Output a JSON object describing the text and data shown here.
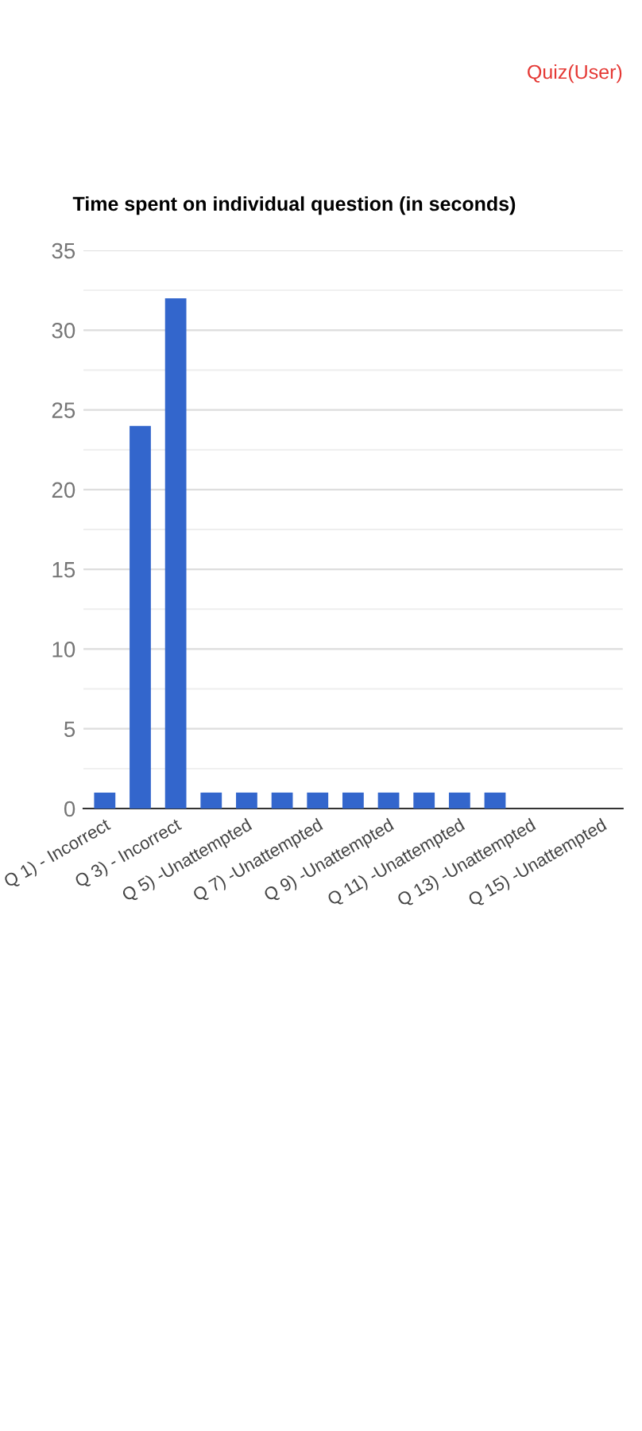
{
  "chart_data": {
    "type": "bar",
    "title": "Time spent on individual question (in seconds)",
    "categories": [
      "Q 1) - Incorrect",
      null,
      "Q 3) - Incorrect",
      null,
      "Q 5) -Unattempted",
      null,
      "Q 7) -Unattempted",
      null,
      "Q 9) -Unattempted",
      null,
      "Q 11) -Unattempted",
      null,
      "Q 13) -Unattempted",
      null,
      "Q 15) -Unattempted"
    ],
    "values": [
      1,
      24,
      32,
      1,
      1,
      1,
      1,
      1,
      1,
      1,
      1,
      1,
      null,
      null,
      null
    ],
    "color": "#3366cc",
    "ylim": [
      0,
      35
    ],
    "yticks": [
      0,
      5,
      10,
      15,
      20,
      25,
      30,
      35
    ],
    "grid": "y",
    "annotations": [
      "Quiz(User)"
    ]
  }
}
